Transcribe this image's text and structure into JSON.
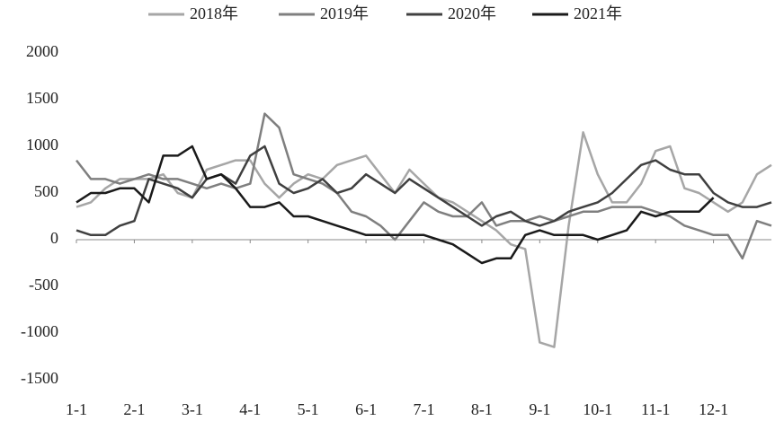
{
  "chart_data": {
    "type": "line",
    "categories": [
      "1-1",
      null,
      null,
      null,
      "2-1",
      null,
      null,
      null,
      "3-1",
      null,
      null,
      null,
      "4-1",
      null,
      null,
      null,
      "5-1",
      null,
      null,
      null,
      "6-1",
      null,
      null,
      null,
      "7-1",
      null,
      null,
      null,
      "8-1",
      null,
      null,
      null,
      "9-1",
      null,
      null,
      null,
      "10-1",
      null,
      null,
      null,
      "11-1",
      null,
      null,
      null,
      "12-1",
      null,
      null,
      null,
      null
    ],
    "series": [
      {
        "name": "2018年",
        "color": "#a6a6a6",
        "values": [
          350,
          400,
          550,
          650,
          650,
          650,
          700,
          500,
          450,
          750,
          800,
          850,
          850,
          600,
          450,
          600,
          700,
          650,
          800,
          850,
          900,
          700,
          500,
          750,
          600,
          450,
          400,
          300,
          200,
          100,
          -50,
          -100,
          -1100,
          -1150,
          150,
          1150,
          700,
          400,
          400,
          600,
          950,
          1000,
          550,
          500,
          400,
          300,
          400,
          700,
          800
        ]
      },
      {
        "name": "2019年",
        "color": "#7f7f7f",
        "values": [
          850,
          650,
          650,
          600,
          650,
          700,
          650,
          650,
          600,
          550,
          600,
          550,
          600,
          1350,
          1200,
          700,
          650,
          600,
          500,
          300,
          250,
          150,
          0,
          200,
          400,
          300,
          250,
          250,
          400,
          150,
          200,
          200,
          250,
          200,
          250,
          300,
          300,
          350,
          350,
          350,
          300,
          250,
          150,
          100,
          50,
          50,
          -200,
          200,
          150
        ]
      },
      {
        "name": "2020年",
        "color": "#404040",
        "values": [
          100,
          50,
          50,
          150,
          200,
          650,
          600,
          550,
          450,
          650,
          700,
          600,
          900,
          1000,
          600,
          500,
          550,
          650,
          500,
          550,
          700,
          600,
          500,
          650,
          550,
          450,
          350,
          250,
          150,
          250,
          300,
          200,
          150,
          200,
          300,
          350,
          400,
          500,
          650,
          800,
          850,
          750,
          700,
          700,
          500,
          400,
          350,
          350,
          400
        ]
      },
      {
        "name": "2021年",
        "color": "#1a1a1a",
        "values": [
          400,
          500,
          500,
          550,
          550,
          400,
          900,
          900,
          1000,
          650,
          700,
          550,
          350,
          350,
          400,
          250,
          250,
          200,
          150,
          100,
          50,
          50,
          50,
          50,
          50,
          0,
          -50,
          -150,
          -250,
          -200,
          -200,
          50,
          100,
          50,
          50,
          50,
          0,
          50,
          100,
          300,
          250,
          300,
          300,
          300,
          450,
          null,
          null,
          null,
          null
        ]
      }
    ],
    "ylim": [
      -1500,
      2000
    ],
    "yticks": [
      -1500,
      -1000,
      -500,
      0,
      500,
      1000,
      1500,
      2000
    ],
    "grid": false,
    "legend": "top"
  }
}
